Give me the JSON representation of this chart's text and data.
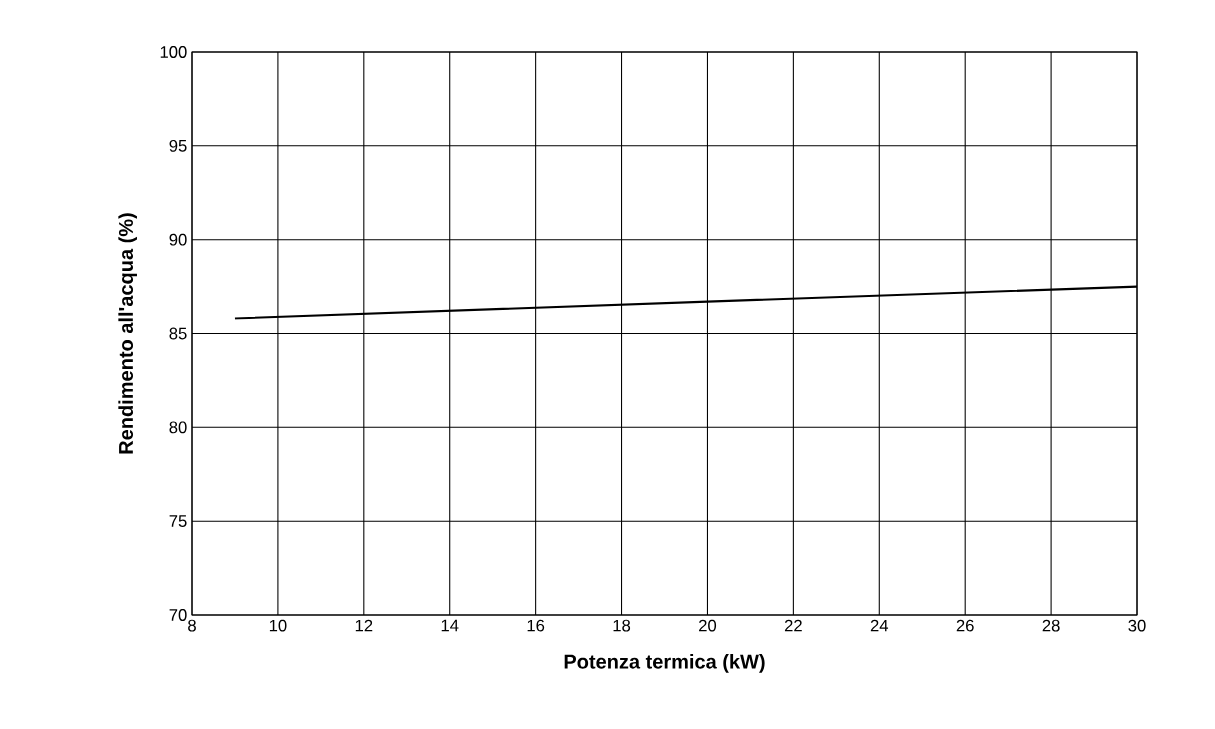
{
  "chart_data": {
    "type": "line",
    "xlabel": "Potenza termica (kW)",
    "ylabel": "Rendimento all'acqua (%)",
    "x": [
      9,
      20,
      30
    ],
    "series": [
      {
        "color": "#000000",
        "values": [
          85.8,
          86.7,
          87.5
        ]
      }
    ],
    "xlim": [
      8,
      30
    ],
    "ylim": [
      70,
      100
    ],
    "xticks": [
      8,
      10,
      12,
      14,
      16,
      18,
      20,
      22,
      24,
      26,
      28,
      30
    ],
    "yticks": [
      70,
      75,
      80,
      85,
      90,
      95,
      100
    ],
    "grid": true
  }
}
